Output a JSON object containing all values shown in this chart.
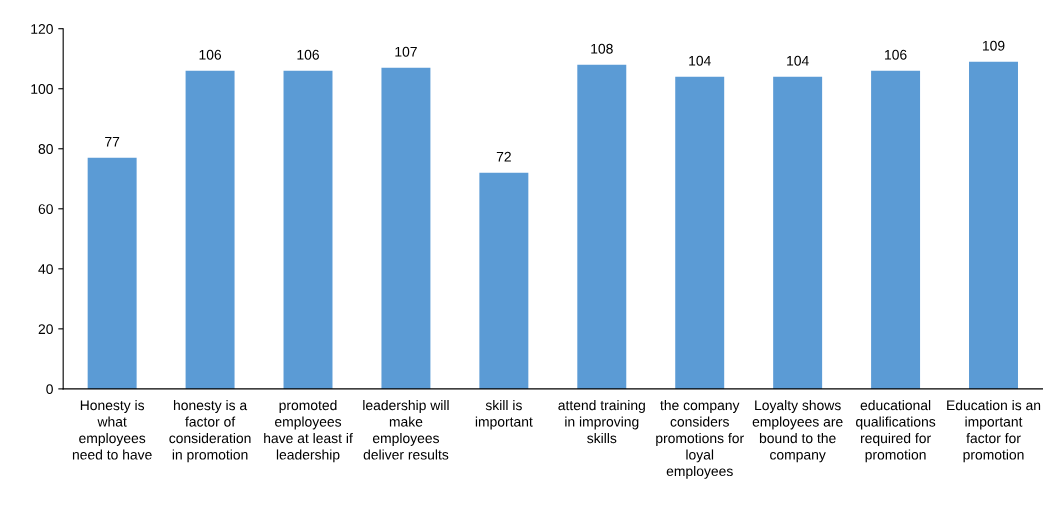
{
  "chart_data": {
    "type": "bar",
    "categories": [
      "Honesty is\nwhat\nemployees\nneed to have",
      "honesty is a\nfactor of\nconsideration\nin promotion",
      "promoted\nemployees\nhave at least if\nleadership",
      "leadership will\nmake\nemployees\ndeliver results",
      "skill is\nimportant",
      "attend training\nin improving\nskills",
      "the company\nconsiders\npromotions for\nloyal\nemployees",
      "Loyalty shows\nemployees are\nbound to the\ncompany",
      "educational\nqualifications\nrequired for\npromotion",
      "Education is an\nimportant\nfactor for\npromotion"
    ],
    "values": [
      77,
      106,
      106,
      107,
      72,
      108,
      104,
      104,
      106,
      109
    ],
    "color": "#5b9bd5",
    "ylim": [
      0,
      120
    ],
    "yticks": [
      0,
      20,
      40,
      60,
      80,
      100,
      120
    ],
    "data_labels": true,
    "grid": false,
    "legend": false
  }
}
